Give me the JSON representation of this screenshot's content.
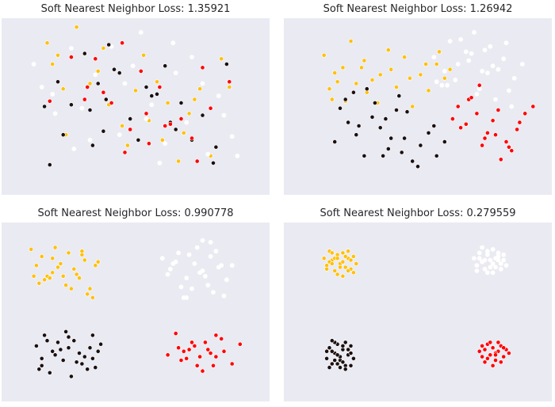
{
  "colors": {
    "background": "#eaeaf2",
    "title": "#262626",
    "point_stroke": "#ffffff",
    "classes": [
      "#ffc107",
      "#ffffff",
      "#1b0f0f",
      "#ff0000"
    ]
  },
  "chart_data": [
    {
      "type": "scatter",
      "title": "Soft Nearest Neighbor Loss: 1.35921",
      "xlim": [
        0,
        10
      ],
      "ylim": [
        0,
        10
      ],
      "grid": false,
      "legend": "none",
      "series": [
        {
          "color": "#ffc107",
          "x": [
            1.7,
            1.9,
            2.3,
            2.8,
            3.1,
            3.6,
            4.0,
            4.5,
            5.3,
            5.8,
            6.2,
            6.6,
            7.0,
            7.4,
            7.8,
            8.2,
            1.6,
            2.4,
            3.3,
            4.7,
            5.5,
            6.8,
            7.2,
            8.5,
            2.1,
            3.8,
            5.0,
            6.0
          ],
          "y": [
            8.6,
            7.4,
            6.0,
            9.5,
            8.0,
            7.0,
            5.1,
            3.9,
            7.9,
            6.4,
            5.2,
            1.9,
            4.6,
            6.0,
            2.2,
            7.7,
            5.0,
            3.4,
            6.3,
            2.8,
            4.2,
            3.5,
            5.4,
            6.1,
            7.9,
            8.3,
            5.9,
            3.1
          ]
        },
        {
          "color": "#ffffff",
          "x": [
            1.2,
            1.5,
            2.6,
            3.0,
            3.5,
            4.1,
            4.4,
            4.9,
            5.2,
            5.6,
            6.1,
            6.5,
            6.9,
            7.1,
            7.7,
            8.1,
            8.6,
            8.8,
            2.0,
            3.3,
            4.6,
            5.9,
            6.4,
            7.5,
            8.3,
            1.9,
            2.7,
            5.4
          ],
          "y": [
            7.4,
            6.1,
            8.3,
            4.9,
            6.8,
            8.4,
            3.4,
            7.3,
            9.2,
            5.1,
            2.9,
            6.9,
            4.1,
            7.8,
            2.3,
            5.6,
            3.3,
            2.2,
            4.6,
            3.1,
            6.3,
            1.8,
            8.6,
            6.3,
            4.5,
            5.7,
            2.6,
            4.3
          ]
        },
        {
          "color": "#1b0f0f",
          "x": [
            1.6,
            1.8,
            2.3,
            2.6,
            3.1,
            3.3,
            3.6,
            3.9,
            4.2,
            4.4,
            4.8,
            5.1,
            5.4,
            5.8,
            6.1,
            6.3,
            6.7,
            7.1,
            7.5,
            7.9,
            8.4,
            8.0,
            3.4,
            3.8,
            2.1,
            4.0,
            5.6,
            6.5
          ],
          "y": [
            5.0,
            1.7,
            3.4,
            5.1,
            8.0,
            4.8,
            6.3,
            5.4,
            7.1,
            6.9,
            4.3,
            3.1,
            6.1,
            5.7,
            7.3,
            4.1,
            5.2,
            3.1,
            4.5,
            1.8,
            7.4,
            2.7,
            2.8,
            3.6,
            6.4,
            8.5,
            5.6,
            3.7
          ]
        },
        {
          "color": "#ff0000",
          "x": [
            1.8,
            2.6,
            3.2,
            3.5,
            3.8,
            4.1,
            4.5,
            4.8,
            5.2,
            5.5,
            5.9,
            6.3,
            6.7,
            7.1,
            7.5,
            7.8,
            8.5,
            5.4,
            4.6,
            3.1,
            7.3,
            6.1
          ],
          "y": [
            5.3,
            7.8,
            6.1,
            7.7,
            5.8,
            5.2,
            8.6,
            3.7,
            7.0,
            2.9,
            6.1,
            4.0,
            4.3,
            3.2,
            7.2,
            4.9,
            6.4,
            4.6,
            2.4,
            5.4,
            1.9,
            3.9
          ]
        }
      ]
    },
    {
      "type": "scatter",
      "title": "Soft Nearest Neighbor Loss: 1.26942",
      "xlim": [
        0,
        10
      ],
      "ylim": [
        0,
        10
      ],
      "grid": false,
      "legend": "none",
      "series": [
        {
          "color": "#ffc107",
          "x": [
            1.5,
            1.7,
            1.9,
            2.2,
            2.5,
            2.7,
            3.0,
            3.3,
            3.6,
            3.9,
            4.2,
            4.5,
            4.8,
            5.1,
            5.4,
            5.7,
            6.0,
            6.2,
            1.8,
            2.3,
            3.1,
            3.5,
            4.0,
            4.7,
            5.3,
            5.8,
            2.0,
            2.9
          ],
          "y": [
            7.9,
            6.0,
            6.9,
            7.2,
            8.7,
            6.3,
            7.6,
            6.5,
            6.8,
            8.2,
            6.1,
            7.8,
            5.0,
            6.8,
            5.9,
            7.4,
            6.6,
            7.1,
            5.4,
            5.3,
            5.8,
            5.2,
            7.1,
            6.6,
            7.4,
            8.1,
            6.4,
            7.2
          ]
        },
        {
          "color": "#ffffff",
          "x": [
            5.6,
            5.9,
            6.2,
            6.5,
            6.8,
            7.1,
            7.4,
            7.7,
            8.0,
            8.3,
            8.6,
            8.9,
            6.0,
            6.4,
            6.9,
            7.3,
            7.6,
            7.9,
            8.2,
            8.5,
            5.7,
            6.6,
            7.0,
            7.8,
            8.4,
            6.1,
            7.2,
            7.5
          ],
          "y": [
            7.8,
            6.2,
            8.7,
            7.4,
            8.1,
            9.2,
            7.0,
            8.4,
            7.1,
            8.6,
            6.6,
            7.4,
            7.0,
            6.5,
            7.6,
            6.0,
            6.9,
            5.4,
            7.7,
            5.0,
            6.4,
            8.8,
            8.0,
            7.3,
            5.9,
            6.2,
            5.7,
            8.2
          ]
        },
        {
          "color": "#1b0f0f",
          "x": [
            1.9,
            2.1,
            2.4,
            2.7,
            3.0,
            3.3,
            3.6,
            3.9,
            4.2,
            4.5,
            4.8,
            5.1,
            5.4,
            5.7,
            6.0,
            2.3,
            2.8,
            3.4,
            3.8,
            4.4,
            5.0,
            5.6,
            3.1,
            3.7,
            4.3,
            2.6,
            4.0,
            4.6
          ],
          "y": [
            3.0,
            4.9,
            4.1,
            3.4,
            2.2,
            4.4,
            3.8,
            2.6,
            4.8,
            3.2,
            1.9,
            2.8,
            3.5,
            2.2,
            3.0,
            5.4,
            3.9,
            5.2,
            4.3,
            2.4,
            1.6,
            3.9,
            6.0,
            2.2,
            5.6,
            5.8,
            3.2,
            4.7
          ]
        },
        {
          "color": "#ff0000",
          "x": [
            6.3,
            6.6,
            6.9,
            7.2,
            7.5,
            7.8,
            8.1,
            8.4,
            8.7,
            9.0,
            9.3,
            7.0,
            7.6,
            8.0,
            8.3,
            6.8,
            7.3,
            7.9,
            8.5,
            8.8,
            7.4,
            6.5
          ],
          "y": [
            4.3,
            3.8,
            5.4,
            4.6,
            3.2,
            4.2,
            2.0,
            2.7,
            3.7,
            4.6,
            5.0,
            5.5,
            3.5,
            4.8,
            3.0,
            4.0,
            6.2,
            3.4,
            2.5,
            4.1,
            2.8,
            5.0
          ]
        }
      ]
    },
    {
      "type": "scatter",
      "title": "Soft Nearest Neighbor Loss: 0.990778",
      "xlim": [
        0,
        10
      ],
      "ylim": [
        0,
        10
      ],
      "grid": false,
      "legend": "none",
      "series": [
        {
          "color": "#ffc107",
          "x": [
            1.1,
            1.3,
            1.5,
            1.7,
            1.9,
            2.1,
            2.3,
            2.5,
            2.7,
            2.9,
            3.1,
            3.3,
            3.5,
            1.4,
            1.8,
            2.2,
            2.6,
            3.0,
            3.4,
            3.6,
            1.2,
            2.0,
            2.8,
            3.2,
            1.6,
            2.4,
            3.0,
            1.9
          ],
          "y": [
            8.5,
            7.6,
            8.1,
            7.0,
            8.0,
            7.5,
            7.0,
            8.3,
            7.4,
            6.9,
            7.9,
            6.3,
            7.6,
            6.6,
            6.9,
            7.7,
            6.3,
            8.2,
            5.8,
            7.8,
            7.0,
            8.6,
            7.1,
            6.0,
            6.8,
            6.5,
            8.4,
            7.2
          ]
        },
        {
          "color": "#ffffff",
          "x": [
            6.0,
            6.3,
            6.6,
            6.9,
            7.2,
            7.5,
            7.8,
            8.1,
            8.4,
            6.2,
            6.7,
            7.0,
            7.4,
            7.7,
            8.0,
            8.3,
            6.5,
            6.8,
            7.3,
            7.6,
            7.9,
            8.6,
            7.1,
            7.5,
            6.4,
            7.8,
            6.9,
            8.2
          ],
          "y": [
            8.0,
            7.4,
            8.3,
            6.9,
            7.7,
            9.0,
            8.1,
            7.5,
            6.8,
            7.1,
            6.4,
            8.2,
            7.2,
            6.5,
            8.4,
            5.9,
            7.8,
            5.8,
            8.6,
            7.0,
            6.1,
            7.6,
            6.3,
            7.3,
            7.7,
            8.9,
            5.8,
            7.6
          ]
        },
        {
          "color": "#1b0f0f",
          "x": [
            1.3,
            1.5,
            1.7,
            1.9,
            2.1,
            2.3,
            2.5,
            2.7,
            2.9,
            3.1,
            3.3,
            3.5,
            3.7,
            1.4,
            1.8,
            2.2,
            2.6,
            3.0,
            3.4,
            1.6,
            2.0,
            2.4,
            2.8,
            3.2,
            3.6,
            1.5,
            2.5,
            3.4
          ],
          "y": [
            3.1,
            2.4,
            3.4,
            2.8,
            3.3,
            2.3,
            3.6,
            3.4,
            2.7,
            2.5,
            3.0,
            1.9,
            3.2,
            1.8,
            1.6,
            2.9,
            1.4,
            2.1,
            3.7,
            3.7,
            2.6,
            3.9,
            2.2,
            1.8,
            2.8,
            2.0,
            3.0,
            2.4
          ]
        },
        {
          "color": "#ff0000",
          "x": [
            6.2,
            6.5,
            6.8,
            7.1,
            7.4,
            7.7,
            8.0,
            8.3,
            8.6,
            8.9,
            6.6,
            6.9,
            7.3,
            7.6,
            7.9,
            8.2,
            7.0,
            7.5,
            8.0,
            6.7,
            7.2,
            7.8
          ],
          "y": [
            2.6,
            3.8,
            2.8,
            3.3,
            2.5,
            2.9,
            3.7,
            2.8,
            2.1,
            3.2,
            3.0,
            2.4,
            2.0,
            3.3,
            2.0,
            3.5,
            2.9,
            1.7,
            2.5,
            2.3,
            3.1,
            2.7
          ]
        }
      ]
    },
    {
      "type": "scatter",
      "title": "Soft Nearest Neighbor Loss: 0.279559",
      "xlim": [
        0,
        10
      ],
      "ylim": [
        0,
        10
      ],
      "grid": false,
      "legend": "none",
      "series": [
        {
          "color": "#ffc107",
          "x": [
            1.5,
            1.6,
            1.7,
            1.8,
            1.9,
            2.0,
            2.1,
            2.2,
            2.3,
            2.4,
            2.5,
            2.6,
            2.7,
            1.6,
            1.8,
            2.0,
            2.2,
            2.4,
            2.6,
            1.7,
            1.9,
            2.1,
            2.3,
            2.5,
            2.2,
            2.0,
            1.8,
            2.4
          ],
          "y": [
            8.0,
            7.6,
            8.4,
            7.9,
            7.3,
            8.2,
            7.7,
            8.3,
            7.5,
            8.0,
            7.4,
            8.1,
            7.7,
            7.4,
            8.3,
            7.1,
            7.8,
            8.4,
            7.2,
            7.8,
            8.0,
            7.5,
            8.1,
            7.9,
            7.0,
            8.0,
            7.7,
            7.3
          ]
        },
        {
          "color": "#ffffff",
          "x": [
            7.1,
            7.2,
            7.3,
            7.4,
            7.5,
            7.6,
            7.7,
            7.8,
            7.9,
            8.0,
            8.1,
            8.2,
            8.3,
            7.2,
            7.4,
            7.6,
            7.8,
            8.0,
            8.2,
            7.3,
            7.5,
            7.7,
            7.9,
            8.1,
            7.6,
            7.8,
            7.4,
            8.0
          ],
          "y": [
            8.0,
            7.6,
            8.3,
            7.8,
            7.4,
            8.2,
            7.9,
            8.5,
            7.5,
            8.1,
            7.7,
            7.9,
            7.6,
            7.3,
            8.6,
            7.2,
            7.7,
            8.3,
            8.2,
            8.0,
            7.9,
            7.5,
            8.0,
            7.4,
            8.4,
            7.2,
            7.8,
            7.9
          ]
        },
        {
          "color": "#1b0f0f",
          "x": [
            1.6,
            1.7,
            1.8,
            1.9,
            2.0,
            2.1,
            2.2,
            2.3,
            2.4,
            2.5,
            2.6,
            1.7,
            1.9,
            2.1,
            2.3,
            2.5,
            1.8,
            2.0,
            2.2,
            2.4,
            1.6,
            2.0,
            2.3,
            1.8,
            2.1,
            2.5,
            1.9,
            2.2
          ],
          "y": [
            2.4,
            3.0,
            2.1,
            2.7,
            3.2,
            2.3,
            2.9,
            2.0,
            2.6,
            3.1,
            2.4,
            1.9,
            3.3,
            2.5,
            1.8,
            2.0,
            2.8,
            2.1,
            3.1,
            2.9,
            2.8,
            2.6,
            3.3,
            3.4,
            1.9,
            2.7,
            2.3,
            2.2
          ]
        },
        {
          "color": "#ff0000",
          "x": [
            7.3,
            7.4,
            7.5,
            7.6,
            7.7,
            7.8,
            7.9,
            8.0,
            8.1,
            8.2,
            8.3,
            8.4,
            7.5,
            7.7,
            7.9,
            8.1,
            7.6,
            7.8,
            8.0,
            8.2,
            7.4,
            7.9
          ],
          "y": [
            2.8,
            2.5,
            2.9,
            3.2,
            2.6,
            3.0,
            2.3,
            2.8,
            3.1,
            2.5,
            2.9,
            2.7,
            2.2,
            3.3,
            2.7,
            2.2,
            2.4,
            2.0,
            3.3,
            3.0,
            3.1,
            2.6
          ]
        }
      ]
    }
  ]
}
